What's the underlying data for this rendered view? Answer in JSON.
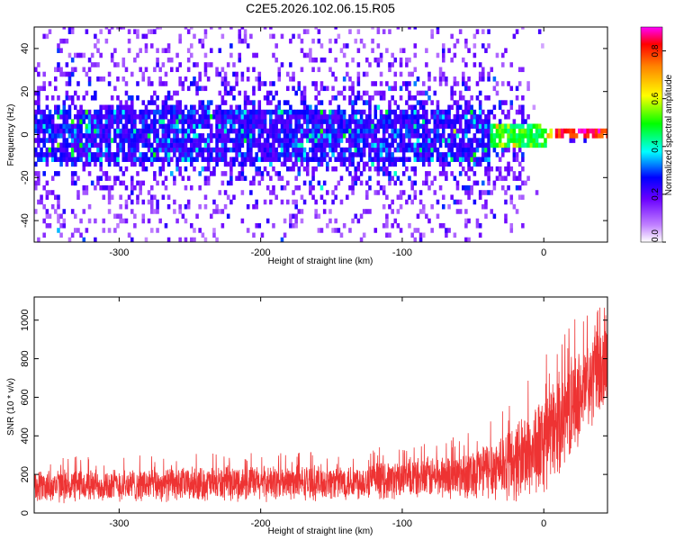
{
  "title": "C2E5.2026.102.06.15.R05",
  "chart_data": [
    {
      "type": "heatmap",
      "xlabel": "Height of straight line (km)",
      "ylabel": "Frequency (Hz)",
      "xlim": [
        -360,
        45
      ],
      "ylim": [
        -50,
        50
      ],
      "xticks": [
        -300,
        -200,
        -100,
        0
      ],
      "xtick_labels": [
        "-300",
        "-200",
        "-100",
        "0"
      ],
      "yticks": [
        -40,
        -20,
        0,
        20,
        40
      ],
      "ytick_labels": [
        "-40",
        "-20",
        "0",
        "20",
        "40"
      ],
      "colorbar": {
        "label": "Normalized spectral amplitude",
        "range": [
          0,
          0.9
        ],
        "ticks": [
          0,
          0.2,
          0.4,
          0.6,
          0.8
        ],
        "tick_labels": [
          "0.0",
          "0.2",
          "0.4",
          "0.6",
          "0.8"
        ],
        "colormap": "rainbow"
      },
      "description_of_signal": {
        "band_center_hz": 0,
        "band_halfwidth_hz": 12,
        "narrow_band_start_km": -40,
        "peak_amplitude_region_km": [
          5,
          45
        ]
      }
    },
    {
      "type": "line",
      "xlabel": "Height of straight line (km)",
      "ylabel": "SNR (10 * v/v)",
      "xlim": [
        -360,
        45
      ],
      "ylim": [
        0,
        1120
      ],
      "xticks": [
        -300,
        -200,
        -100,
        0
      ],
      "xtick_labels": [
        "-300",
        "-200",
        "-100",
        "0"
      ],
      "yticks": [
        0,
        200,
        400,
        600,
        800,
        1000
      ],
      "ytick_labels": [
        "0",
        "200",
        "400",
        "600",
        "800",
        "1000"
      ],
      "series": [
        {
          "name": "SNR",
          "color": "#ee3333",
          "trend_x": [
            -360,
            -300,
            -200,
            -150,
            -100,
            -60,
            -40,
            -20,
            0,
            20,
            45
          ],
          "trend_mean": [
            140,
            145,
            155,
            160,
            175,
            195,
            225,
            270,
            360,
            560,
            780
          ],
          "trend_spread": [
            95,
            95,
            100,
            100,
            110,
            130,
            170,
            230,
            290,
            280,
            250
          ]
        }
      ]
    }
  ]
}
